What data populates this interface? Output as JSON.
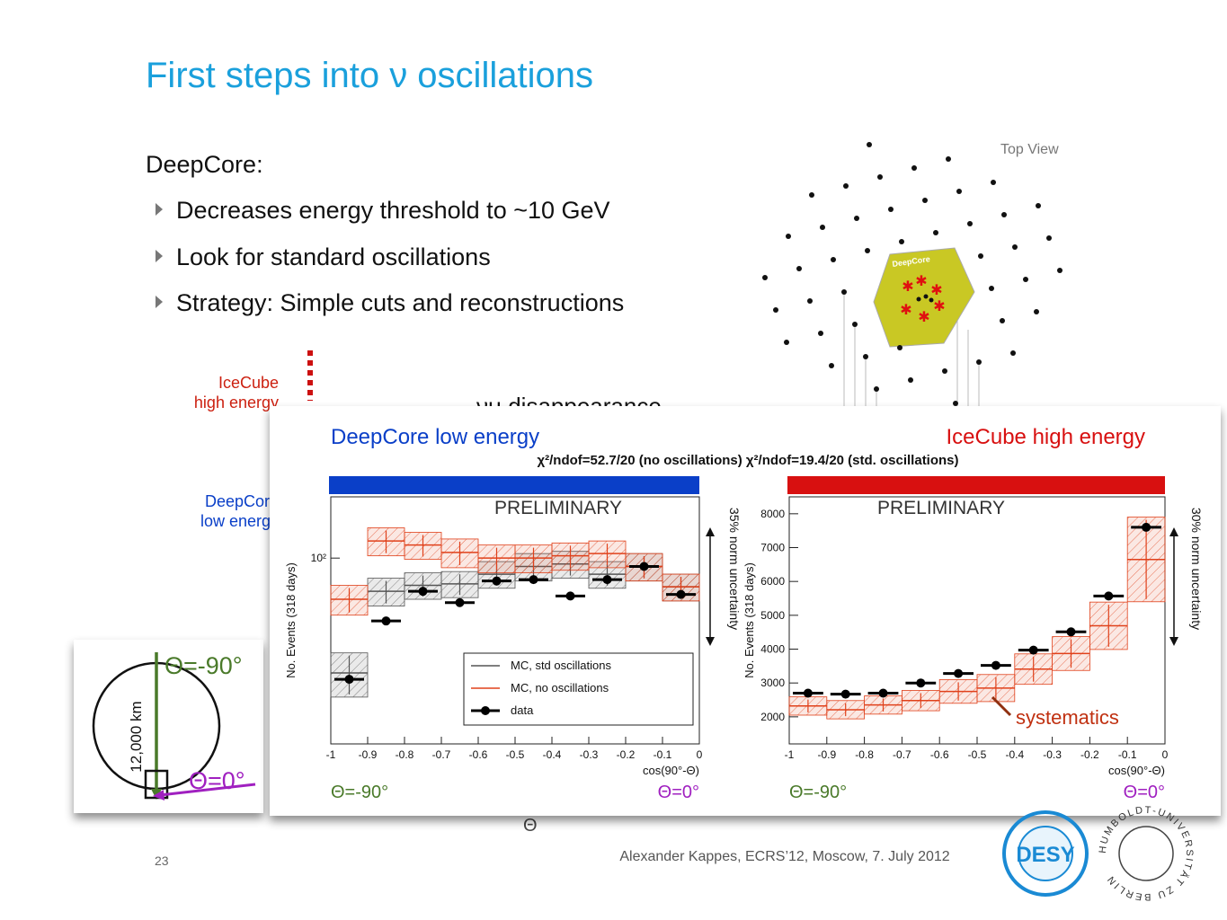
{
  "title": "First steps into ν oscillations",
  "intro": "DeepCore:",
  "bullets": [
    "Decreases energy threshold to ~10 GeV",
    "Look for standard oscillations",
    "Strategy: Simple cuts and reconstructions"
  ],
  "top_view": {
    "label": "Top View",
    "hexagon_label": "DeepCore"
  },
  "background": {
    "icecube_label": [
      "IceCube",
      "high energy"
    ],
    "deepcore_label": [
      "DeepCore",
      "low energy"
    ],
    "heading": "νμ disappearance"
  },
  "earth": {
    "zenith_top": "Θ=-90°",
    "zenith_bottom": "Θ=0°",
    "distance": "12,000 km"
  },
  "overlay": {
    "fit_summary": "χ²/ndof=52.7/20 (no oscillations) χ²/ndof=19.4/20 (std. oscillations)"
  },
  "chart_data": [
    {
      "type": "histogram",
      "title": "DeepCore low energy",
      "header_color": "#0a3fc8",
      "ylabel": "No. Events (318 days)",
      "xlabel": "cos(90°-Θ)",
      "x_end_labels": [
        "Θ=-90°",
        "Θ=0°"
      ],
      "watermark": "PRELIMINARY",
      "side_note": "35% norm uncertainty",
      "log_scale": true,
      "legend": "lower right",
      "bins": [
        -1,
        -0.9,
        -0.8,
        -0.7,
        -0.6,
        -0.5,
        -0.4,
        -0.3,
        -0.2,
        -0.1,
        0
      ],
      "xlim": [
        -1,
        0
      ],
      "xticks": [
        -1,
        -0.9,
        -0.8,
        -0.7,
        -0.6,
        -0.5,
        -0.4,
        -0.3,
        -0.2,
        -0.1,
        0
      ],
      "ylim": [
        20,
        170
      ],
      "yticks": [
        {
          "value": 100,
          "label": "10²"
        }
      ],
      "series": [
        {
          "name": "MC, std oscillations",
          "color": "#555555",
          "style": "band",
          "values": [
            37,
            75,
            79,
            80,
            87,
            93,
            95,
            87,
            93,
            78
          ],
          "errors": [
            7,
            9,
            9,
            9,
            10,
            11,
            11,
            10,
            11,
            9
          ]
        },
        {
          "name": "MC, no oscillations",
          "color": "#e0401a",
          "style": "band",
          "values": [
            70,
            116,
            112,
            105,
            100,
            100,
            102,
            104,
            93,
            78
          ],
          "errors": [
            9,
            14,
            13,
            13,
            12,
            12,
            12,
            12,
            11,
            9
          ]
        },
        {
          "name": "data",
          "color": "#000000",
          "style": "points",
          "values": [
            35,
            58,
            75,
            68,
            82,
            83,
            72,
            83,
            93,
            73
          ]
        }
      ]
    },
    {
      "type": "histogram",
      "title": "IceCube high energy",
      "header_color": "#d81010",
      "ylabel": "No. Events (318 days)",
      "xlabel": "cos(90°-Θ)",
      "x_end_labels": [
        "Θ=-90°",
        "Θ=0°"
      ],
      "watermark": "PRELIMINARY",
      "side_note": "30% norm uncertainty",
      "callout": "systematics",
      "log_scale": false,
      "legend": false,
      "bins": [
        -1,
        -0.9,
        -0.8,
        -0.7,
        -0.6,
        -0.5,
        -0.4,
        -0.3,
        -0.2,
        -0.1,
        0
      ],
      "xlim": [
        -1,
        0
      ],
      "xticks": [
        -1,
        -0.9,
        -0.8,
        -0.7,
        -0.6,
        -0.5,
        -0.4,
        -0.3,
        -0.2,
        -0.1,
        0
      ],
      "ylim": [
        1200,
        8500
      ],
      "yticks": [
        2000,
        3000,
        4000,
        5000,
        6000,
        7000,
        8000
      ],
      "series": [
        {
          "color": "#e0401a",
          "style": "band",
          "values": [
            2320,
            2210,
            2350,
            2480,
            2750,
            2850,
            3410,
            3870,
            4690,
            6650
          ],
          "errors": [
            270,
            270,
            270,
            300,
            350,
            400,
            450,
            500,
            700,
            1250
          ]
        },
        {
          "color": "#000000",
          "style": "points",
          "values": [
            2700,
            2670,
            2700,
            3000,
            3280,
            3520,
            3970,
            4510,
            5570,
            7600
          ]
        }
      ]
    }
  ],
  "footer": {
    "page": "23",
    "credit": "Alexander Kappes, ECRS’12, Moscow, 7. July 2012"
  },
  "logos": {
    "desy": "DESY",
    "humboldt": "HUMBOLDT-UNIVERSITÄT ZU BERLIN"
  }
}
